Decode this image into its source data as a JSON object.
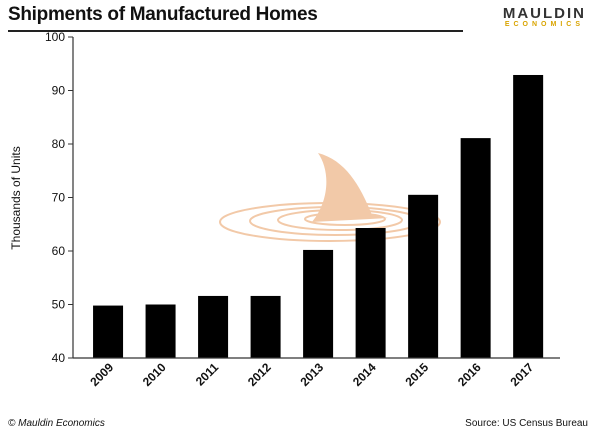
{
  "header": {
    "title": "Shipments of Manufactured Homes",
    "logo_line1": "MAULDIN",
    "logo_line2": "ECONOMICS"
  },
  "footer": {
    "copyright": "© Mauldin Economics",
    "source": "Source: US Census Bureau"
  },
  "colors": {
    "bars": "#000000",
    "logo_accent": "#d9a400",
    "fin": "#f2c9a8"
  },
  "chart_data": {
    "type": "bar",
    "title": "Shipments of Manufactured Homes",
    "xlabel": "",
    "ylabel": "Thousands of Units",
    "ylim": [
      40,
      100
    ],
    "yticks": [
      40,
      50,
      60,
      70,
      80,
      90,
      100
    ],
    "grid": false,
    "categories": [
      "2009",
      "2010",
      "2011",
      "2012",
      "2013",
      "2014",
      "2015",
      "2016",
      "2017"
    ],
    "values": [
      49.8,
      50.0,
      51.6,
      51.6,
      60.2,
      64.3,
      70.5,
      81.1,
      92.9
    ]
  }
}
